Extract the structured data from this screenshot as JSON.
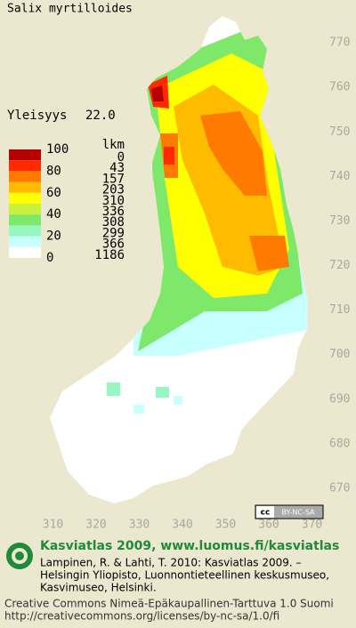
{
  "title": "Salix myrtilloides",
  "index_label": "Yleisyys",
  "index": {
    "value": 22,
    "label": "22.0"
  },
  "map": {
    "xlim": [
      300,
      380
    ],
    "ylim": [
      660,
      780
    ],
    "xticks": [
      310,
      320,
      330,
      340,
      350,
      360,
      370
    ],
    "yticks": [
      670,
      680,
      690,
      700,
      710,
      720,
      730,
      740,
      750,
      760,
      770
    ]
  },
  "legend": {
    "count_title": "lkm",
    "scale": [
      100,
      80,
      60,
      40,
      20,
      0
    ],
    "colors": [
      "#b40000",
      "#ff2a00",
      "#ff7a00",
      "#ffbb00",
      "#ffff00",
      "#c8f03c",
      "#7ee86a",
      "#96f8c0",
      "#c8ffff",
      "#ffffff"
    ],
    "counts": [
      0,
      43,
      157,
      203,
      310,
      336,
      308,
      299,
      366,
      1186
    ]
  },
  "badge": "BY-NC-SA",
  "footer": {
    "heading": "Kasviatlas 2009, www.luomus.fi/kasviatlas",
    "citation": [
      "Lampinen, R. & Lahti, T. 2010: Kasviatlas 2009. –",
      "Helsingin Yliopisto, Luonnontieteellinen keskusmuseo,",
      "Kasvimuseo, Helsinki."
    ],
    "license": [
      "Creative Commons Nimeä-Epäkaupallinen-Tarttuva 1.0 Suomi",
      "http://creativecommons.org/licenses/by-nc-sa/1.0/fi"
    ]
  }
}
